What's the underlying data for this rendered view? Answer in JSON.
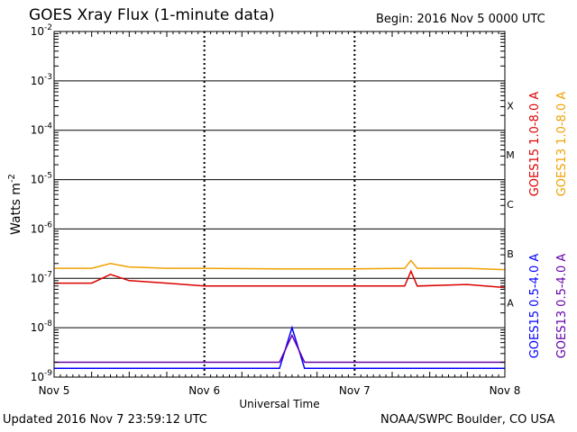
{
  "header": {
    "title": "GOES Xray Flux (1-minute data)",
    "begin": "Begin:  2016 Nov 5 0000 UTC"
  },
  "footer": {
    "updated": "Updated 2016 Nov  7 23:59:12 UTC",
    "credit": "NOAA/SWPC Boulder, CO USA"
  },
  "colors": {
    "goes15_long": "#dd0000",
    "goes13_long": "#f0a000",
    "goes15_short": "#0000ff",
    "goes13_short": "#6600aa"
  },
  "chart_data": {
    "type": "line",
    "title": "GOES Xray Flux (1-minute data)",
    "xlabel": "Universal Time",
    "ylabel": "Watts m-2",
    "y_scale": "log",
    "ylim": [
      1e-09,
      0.01
    ],
    "y_ticks": [
      "10-9",
      "10-8",
      "10-7",
      "10-6",
      "10-5",
      "10-4",
      "10-3",
      "10-2"
    ],
    "x_ticks": [
      "Nov 5",
      "Nov 6",
      "Nov 7",
      "Nov 8"
    ],
    "xlim": [
      "2016-11-05 00:00",
      "2016-11-08 00:00"
    ],
    "flare_classes": [
      "A",
      "B",
      "C",
      "M",
      "X"
    ],
    "grid": true,
    "series": [
      {
        "name": "GOES15 1.0-8.0 A",
        "color": "#dd0000",
        "x": [
          "2016-11-05 00:00",
          "2016-11-05 06:00",
          "2016-11-05 09:00",
          "2016-11-05 12:00",
          "2016-11-05 18:00",
          "2016-11-06 00:00",
          "2016-11-06 12:00",
          "2016-11-07 00:00",
          "2016-11-07 08:00",
          "2016-11-07 09:00",
          "2016-11-07 10:00",
          "2016-11-07 18:00",
          "2016-11-08 00:00"
        ],
        "values": [
          8e-08,
          8e-08,
          1.2e-07,
          9e-08,
          8e-08,
          7e-08,
          7e-08,
          7e-08,
          7e-08,
          1.4e-07,
          7e-08,
          7.5e-08,
          6.5e-08
        ]
      },
      {
        "name": "GOES13 1.0-8.0 A",
        "color": "#f0a000",
        "x": [
          "2016-11-05 00:00",
          "2016-11-05 06:00",
          "2016-11-05 09:00",
          "2016-11-05 12:00",
          "2016-11-05 18:00",
          "2016-11-06 00:00",
          "2016-11-06 12:00",
          "2016-11-07 00:00",
          "2016-11-07 08:00",
          "2016-11-07 09:00",
          "2016-11-07 10:00",
          "2016-11-07 18:00",
          "2016-11-08 00:00"
        ],
        "values": [
          1.6e-07,
          1.6e-07,
          2e-07,
          1.7e-07,
          1.6e-07,
          1.6e-07,
          1.55e-07,
          1.55e-07,
          1.6e-07,
          2.3e-07,
          1.6e-07,
          1.6e-07,
          1.5e-07
        ]
      },
      {
        "name": "GOES15 0.5-4.0 A",
        "color": "#0000ff",
        "x": [
          "2016-11-05 00:00",
          "2016-11-05 12:00",
          "2016-11-06 00:00",
          "2016-11-06 12:00",
          "2016-11-06 14:00",
          "2016-11-06 16:00",
          "2016-11-07 00:00",
          "2016-11-07 12:00",
          "2016-11-08 00:00"
        ],
        "values": [
          1.5e-09,
          1.5e-09,
          1.5e-09,
          1.5e-09,
          1e-08,
          1.5e-09,
          1.5e-09,
          1.5e-09,
          1.5e-09
        ]
      },
      {
        "name": "GOES13 0.5-4.0 A",
        "color": "#6600aa",
        "x": [
          "2016-11-05 00:00",
          "2016-11-05 12:00",
          "2016-11-06 00:00",
          "2016-11-06 12:00",
          "2016-11-06 14:00",
          "2016-11-06 16:00",
          "2016-11-07 00:00",
          "2016-11-07 12:00",
          "2016-11-08 00:00"
        ],
        "values": [
          2e-09,
          2e-09,
          2e-09,
          2e-09,
          7e-09,
          2e-09,
          2e-09,
          2e-09,
          2e-09
        ]
      }
    ]
  }
}
